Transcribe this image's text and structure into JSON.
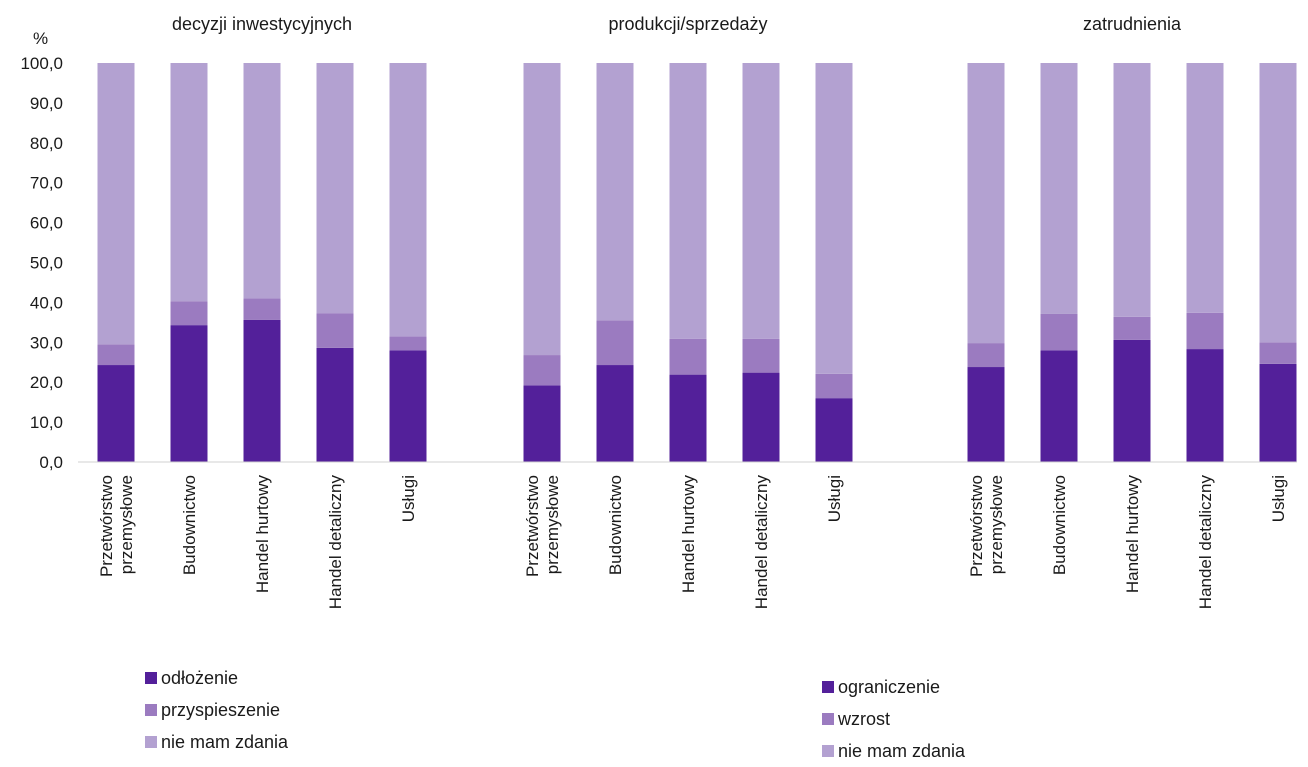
{
  "chart_data": {
    "type": "bar",
    "stacked": true,
    "ylabel": "%",
    "ylim": [
      0,
      100
    ],
    "yticks": [
      "0,0",
      "10,0",
      "20,0",
      "30,0",
      "40,0",
      "50,0",
      "60,0",
      "70,0",
      "80,0",
      "90,0",
      "100,0"
    ],
    "grid": false,
    "colors": {
      "dark": "#53209a",
      "mid": "#9b7bc0",
      "light": "#b3a1d1"
    },
    "groups": [
      {
        "title": "decyzji inwestycyjnych",
        "categories": [
          [
            "Przetwórstwo",
            "przemysłowe"
          ],
          [
            "Budownictwo"
          ],
          [
            "Handel hurtowy"
          ],
          [
            "Handel detaliczny"
          ],
          [
            "Usługi"
          ]
        ],
        "series": [
          {
            "name": "odłożenie",
            "values": [
              24.3,
              34.3,
              35.6,
              28.6,
              28.0
            ]
          },
          {
            "name": "przyspieszenie",
            "values": [
              5.2,
              6.0,
              5.4,
              8.7,
              3.5
            ]
          },
          {
            "name": "nie mam zdania",
            "values": [
              70.5,
              59.7,
              59.0,
              62.7,
              68.5
            ]
          }
        ]
      },
      {
        "title": "produkcji/sprzedaży",
        "categories": [
          [
            "Przetwórstwo",
            "przemysłowe"
          ],
          [
            "Budownictwo"
          ],
          [
            "Handel hurtowy"
          ],
          [
            "Handel detaliczny"
          ],
          [
            "Usługi"
          ]
        ],
        "series": [
          {
            "name": "ograniczenie",
            "values": [
              19.2,
              24.3,
              21.9,
              22.4,
              16.0
            ]
          },
          {
            "name": "wzrost",
            "values": [
              7.6,
              11.2,
              9.0,
              8.5,
              6.1
            ]
          },
          {
            "name": "nie mam zdania",
            "values": [
              73.2,
              64.5,
              69.1,
              69.1,
              77.9
            ]
          }
        ]
      },
      {
        "title": "zatrudnienia",
        "categories": [
          [
            "Przetwórstwo",
            "przemysłowe"
          ],
          [
            "Budownictwo"
          ],
          [
            "Handel hurtowy"
          ],
          [
            "Handel detaliczny"
          ],
          [
            "Usługi"
          ]
        ],
        "series": [
          {
            "name": "ograniczenie",
            "values": [
              23.8,
              28.0,
              30.6,
              28.3,
              24.6
            ]
          },
          {
            "name": "wzrost",
            "values": [
              6.0,
              9.1,
              5.8,
              9.1,
              5.4
            ]
          },
          {
            "name": "nie mam zdania",
            "values": [
              70.2,
              62.9,
              63.6,
              62.6,
              70.0
            ]
          }
        ]
      }
    ],
    "legends": [
      {
        "items": [
          "odłożenie",
          "przyspieszenie",
          "nie mam zdania"
        ]
      },
      {
        "items": [
          "ograniczenie",
          "wzrost",
          "nie mam zdania"
        ]
      }
    ]
  }
}
